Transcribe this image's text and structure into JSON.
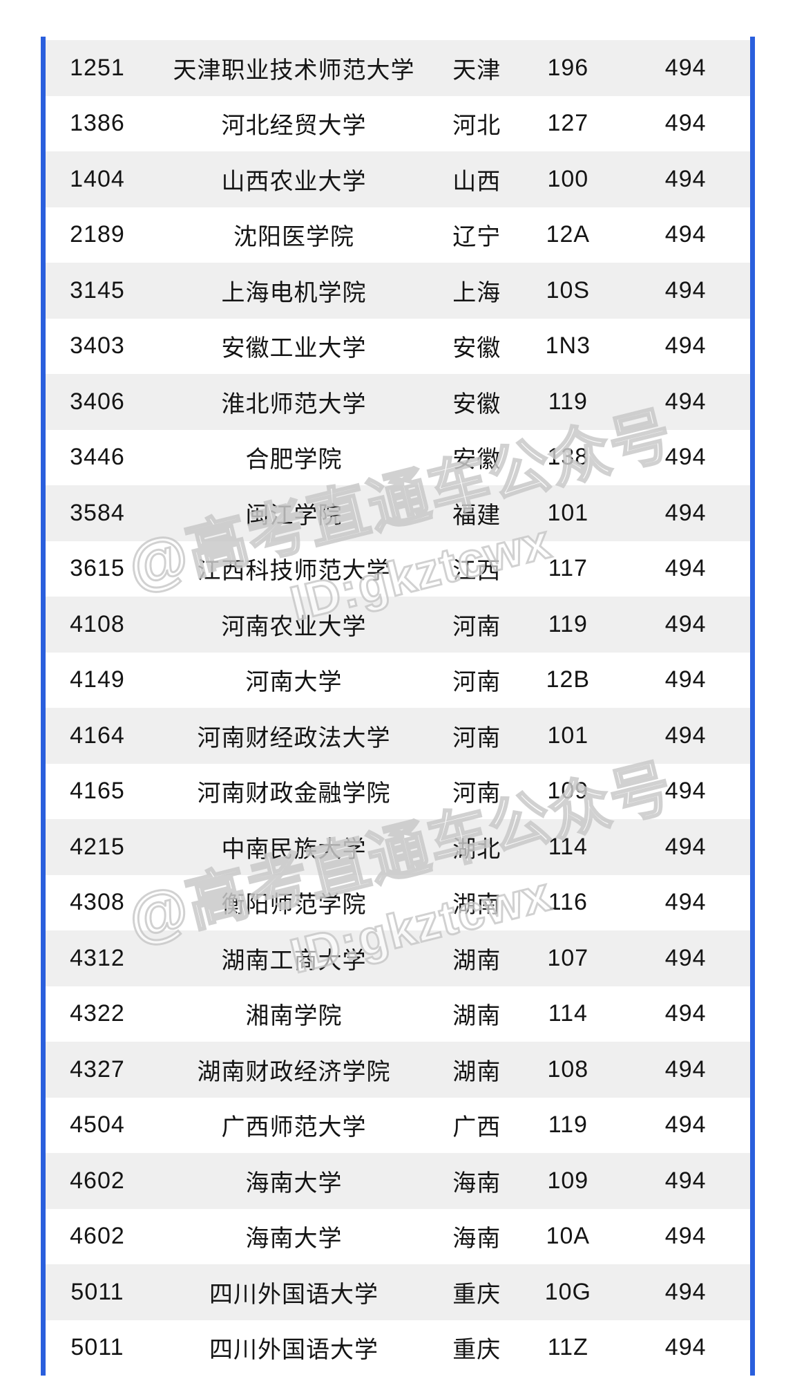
{
  "colors": {
    "accent_blue": "#2a5fdd",
    "stripe_gray": "#efefef",
    "text": "#141414",
    "watermark_stroke": "#c9c9c9"
  },
  "watermark": {
    "line1": "@高考直通车公众号",
    "line2": "ID:gkztcwx"
  },
  "chart_data": {
    "type": "table",
    "title": "",
    "rows": [
      [
        "1251",
        "天津职业技术师范大学",
        "天津",
        "196",
        "494"
      ],
      [
        "1386",
        "河北经贸大学",
        "河北",
        "127",
        "494"
      ],
      [
        "1404",
        "山西农业大学",
        "山西",
        "100",
        "494"
      ],
      [
        "2189",
        "沈阳医学院",
        "辽宁",
        "12A",
        "494"
      ],
      [
        "3145",
        "上海电机学院",
        "上海",
        "10S",
        "494"
      ],
      [
        "3403",
        "安徽工业大学",
        "安徽",
        "1N3",
        "494"
      ],
      [
        "3406",
        "淮北师范大学",
        "安徽",
        "119",
        "494"
      ],
      [
        "3446",
        "合肥学院",
        "安徽",
        "138",
        "494"
      ],
      [
        "3584",
        "闽江学院",
        "福建",
        "101",
        "494"
      ],
      [
        "3615",
        "江西科技师范大学",
        "江西",
        "117",
        "494"
      ],
      [
        "4108",
        "河南农业大学",
        "河南",
        "119",
        "494"
      ],
      [
        "4149",
        "河南大学",
        "河南",
        "12B",
        "494"
      ],
      [
        "4164",
        "河南财经政法大学",
        "河南",
        "101",
        "494"
      ],
      [
        "4165",
        "河南财政金融学院",
        "河南",
        "109",
        "494"
      ],
      [
        "4215",
        "中南民族大学",
        "湖北",
        "114",
        "494"
      ],
      [
        "4308",
        "衡阳师范学院",
        "湖南",
        "116",
        "494"
      ],
      [
        "4312",
        "湖南工商大学",
        "湖南",
        "107",
        "494"
      ],
      [
        "4322",
        "湘南学院",
        "湖南",
        "114",
        "494"
      ],
      [
        "4327",
        "湖南财政经济学院",
        "湖南",
        "108",
        "494"
      ],
      [
        "4504",
        "广西师范大学",
        "广西",
        "119",
        "494"
      ],
      [
        "4602",
        "海南大学",
        "海南",
        "109",
        "494"
      ],
      [
        "4602",
        "海南大学",
        "海南",
        "10A",
        "494"
      ],
      [
        "5011",
        "四川外国语大学",
        "重庆",
        "10G",
        "494"
      ],
      [
        "5011",
        "四川外国语大学",
        "重庆",
        "11Z",
        "494"
      ]
    ]
  }
}
